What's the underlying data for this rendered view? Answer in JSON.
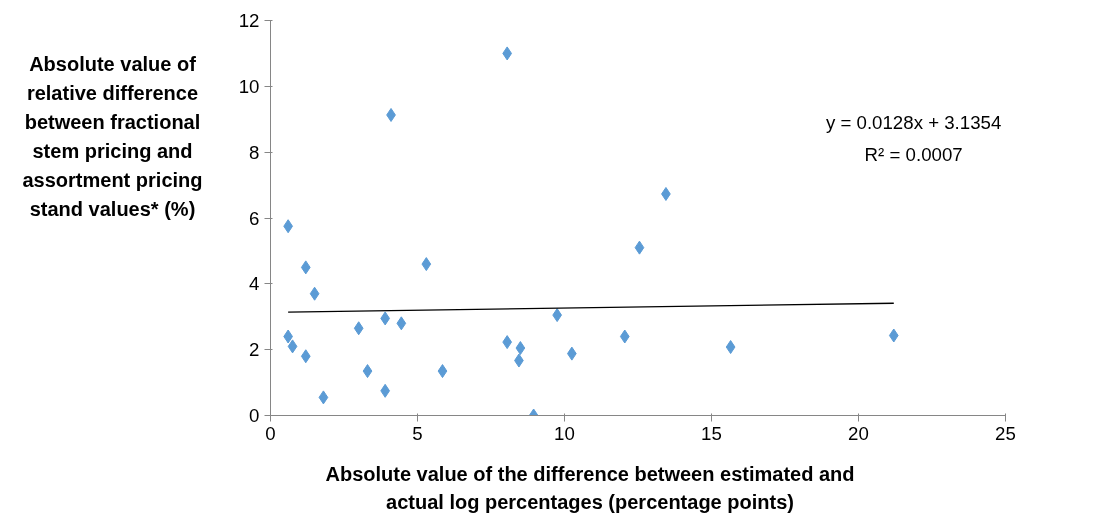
{
  "chart_data": {
    "type": "scatter",
    "xlabel": "Absolute value of the difference between estimated and actual log percentages (percentage points)",
    "ylabel": "Absolute value of relative difference between fractional stem pricing and assortment pricing stand values* (%)",
    "x": [
      0.6,
      0.6,
      0.75,
      1.2,
      1.2,
      1.5,
      1.8,
      3.0,
      3.3,
      3.9,
      3.9,
      4.1,
      4.45,
      5.3,
      5.85,
      8.05,
      8.05,
      8.5,
      8.45,
      8.95,
      9.75,
      10.25,
      12.05,
      12.55,
      13.45,
      15.65,
      21.2
    ],
    "series": [
      {
        "color": "#5b9bd5",
        "marker": "diamond",
        "values": [
          5.75,
          2.4,
          2.1,
          4.5,
          1.8,
          3.7,
          0.55,
          2.65,
          1.35,
          2.95,
          0.75,
          9.13,
          2.8,
          4.6,
          1.35,
          11.0,
          2.23,
          2.05,
          1.67,
          0.0,
          3.05,
          1.88,
          2.4,
          5.1,
          6.73,
          2.08,
          2.43
        ]
      },
      {
        "type": "line",
        "color": "#000000",
        "marker": "none",
        "x": [
          0.6,
          21.2
        ],
        "values": [
          3.14,
          3.41
        ]
      }
    ],
    "xlim": [
      0,
      25
    ],
    "xticks": [
      0,
      5,
      10,
      15,
      20,
      25
    ],
    "ylim": [
      0,
      12
    ],
    "yticks": [
      0,
      2,
      4,
      6,
      8,
      10,
      12
    ],
    "grid": false,
    "annotations": [
      "y = 0.0128x + 3.1354",
      "R² = 0.0007"
    ]
  }
}
